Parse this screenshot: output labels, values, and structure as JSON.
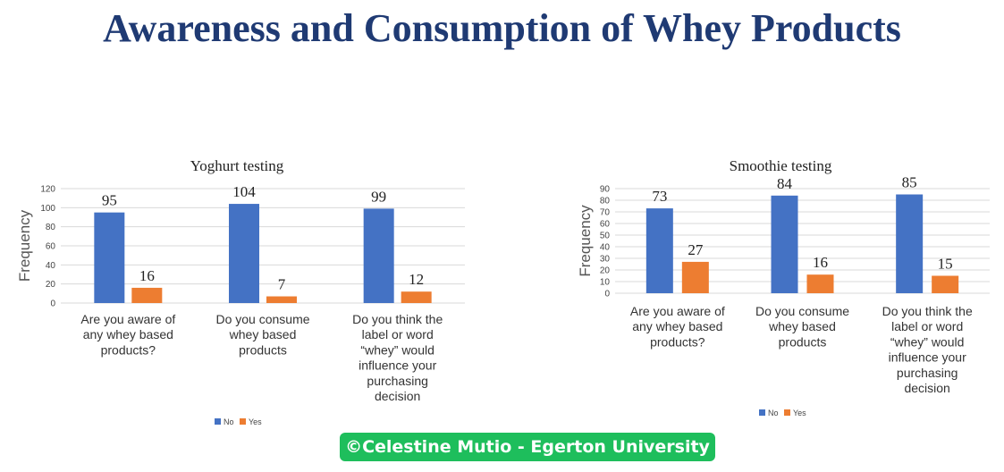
{
  "page": {
    "title": "Awareness and Consumption of Whey Products",
    "watermark": "©Celestine Mutio - Egerton University"
  },
  "colors": {
    "no": "#4472c4",
    "yes": "#ed7d31",
    "title": "#1f3a73",
    "watermark_bg": "#1ebe5c"
  },
  "chart_data": [
    {
      "type": "bar",
      "title": "Yoghurt testing",
      "ylabel": "Frequency",
      "xlabel": "",
      "ylim": [
        0,
        120
      ],
      "yticks": [
        0,
        20,
        40,
        60,
        80,
        100,
        120
      ],
      "grid": true,
      "legend": "bottom",
      "categories": [
        [
          "Are you aware of",
          "any whey based",
          "products?"
        ],
        [
          "Do you consume",
          "whey based",
          "products"
        ],
        [
          "Do you think the",
          "label or word",
          "“whey” would",
          "influence your",
          "purchasing",
          "decision"
        ]
      ],
      "series": [
        {
          "name": "No",
          "values": [
            95,
            104,
            99
          ]
        },
        {
          "name": "Yes",
          "values": [
            16,
            7,
            12
          ]
        }
      ]
    },
    {
      "type": "bar",
      "title": "Smoothie testing",
      "ylabel": "Frequency",
      "xlabel": "",
      "ylim": [
        0,
        90
      ],
      "yticks": [
        0,
        10,
        20,
        30,
        40,
        50,
        60,
        70,
        80,
        90
      ],
      "grid": true,
      "legend": "bottom",
      "categories": [
        [
          "Are you aware of",
          "any whey based",
          "products?"
        ],
        [
          "Do you consume",
          "whey based",
          "products"
        ],
        [
          "Do you think the",
          "label or word",
          "“whey” would",
          "influence your",
          "purchasing",
          "decision"
        ]
      ],
      "series": [
        {
          "name": "No",
          "values": [
            73,
            84,
            85
          ]
        },
        {
          "name": "Yes",
          "values": [
            27,
            16,
            15
          ]
        }
      ]
    }
  ]
}
